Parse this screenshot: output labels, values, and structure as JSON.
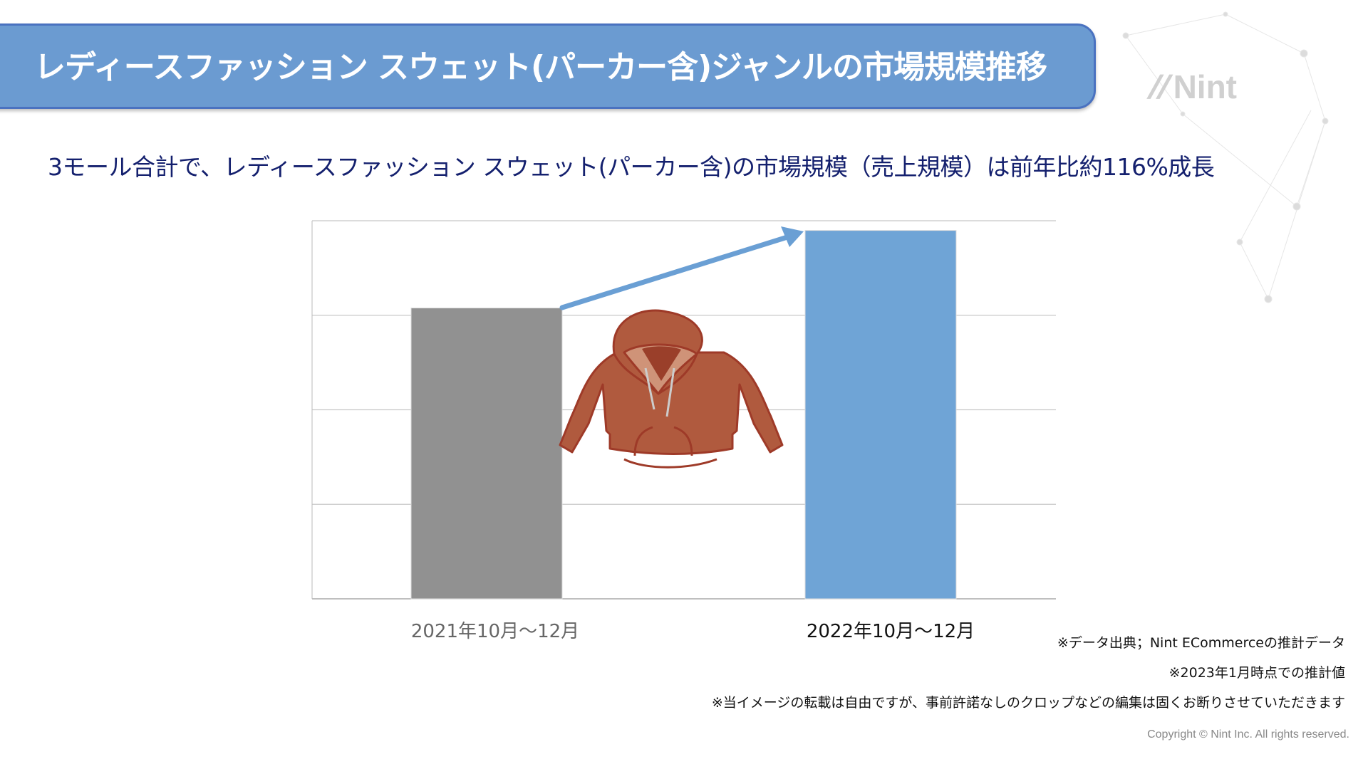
{
  "header": {
    "title": "レディースファッション スウェット(パーカー含)ジャンルの市場規模推移",
    "logo_text": "Nint"
  },
  "subtitle": "3モール合計で、レディースファッション スウェット(パーカー含)の市場規模（売上規模）は前年比約116%成長",
  "chart_data": {
    "type": "bar",
    "categories": [
      "2021年10月〜12月",
      "2022年10月〜12月"
    ],
    "values": [
      100,
      116
    ],
    "ylim": [
      40,
      118
    ],
    "grid": true,
    "colors": [
      "#919191",
      "#6fa4d6"
    ],
    "arrow_color": "#6a9fd4",
    "illustration": "hoodie-icon"
  },
  "notes": [
    "※データ出典；Nint ECommerceの推計データ",
    "※2023年1月時点での推計値",
    "※当イメージの転載は自由ですが、事前許諾なしのクロップなどの編集は固くお断りさせていただきます"
  ],
  "copyright": "Copyright © Nint Inc. All rights reserved."
}
